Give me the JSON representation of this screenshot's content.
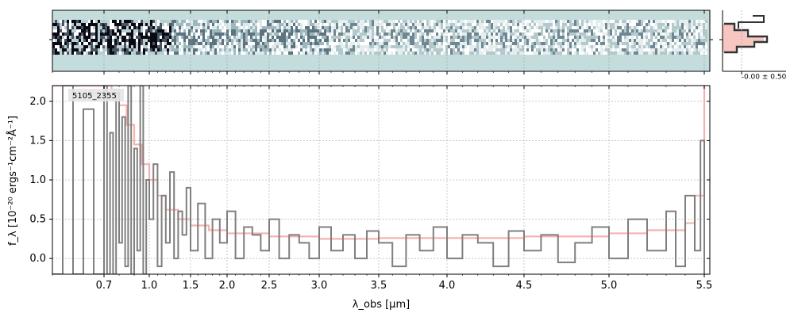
{
  "chart_data": {
    "type": "line",
    "object_label": "5105_2355",
    "xlabel": "λ_obs [μm]",
    "ylabel": "f_λ [10⁻²⁰ ergs⁻¹cm⁻²Å⁻¹]",
    "xlim": [
      0.6,
      5.5
    ],
    "ylim": [
      -0.2,
      2.2
    ],
    "x_scale": "warped (dispersion-based)",
    "x_ticks": [
      0.7,
      1.0,
      1.5,
      2.0,
      2.5,
      3.0,
      3.5,
      4.0,
      4.5,
      5.0,
      5.5
    ],
    "x_tick_labels": [
      "0.7",
      "1.0",
      "1.5",
      "2.0",
      "2.5",
      "3.0",
      "3.5",
      "4.0",
      "4.5",
      "5.0",
      "5.5"
    ],
    "y_ticks": [
      0.0,
      0.5,
      1.0,
      1.5,
      2.0
    ],
    "y_tick_labels": [
      "0.0",
      "0.5",
      "1.0",
      "1.5",
      "2.0"
    ],
    "grid": true,
    "series": [
      {
        "name": "",
        "color": "#f4a6a0",
        "style": "step",
        "x": [
          0.6,
          0.7,
          0.75,
          0.8,
          0.85,
          0.9,
          0.95,
          1.0,
          1.1,
          1.2,
          1.35,
          1.5,
          1.75,
          2.0,
          2.5,
          3.0,
          3.5,
          4.0,
          4.5,
          5.0,
          5.2,
          5.4,
          5.45,
          5.5
        ],
        "values": [
          2.2,
          2.2,
          2.15,
          1.95,
          1.7,
          1.45,
          1.2,
          1.0,
          0.8,
          0.62,
          0.5,
          0.42,
          0.36,
          0.32,
          0.28,
          0.25,
          0.26,
          0.26,
          0.28,
          0.32,
          0.36,
          0.45,
          0.8,
          2.2
        ]
      },
      {
        "name": "",
        "color": "#7f7f7f",
        "style": "step",
        "x": [
          0.6,
          0.62,
          0.64,
          0.66,
          0.68,
          0.7,
          0.72,
          0.74,
          0.76,
          0.78,
          0.8,
          0.82,
          0.84,
          0.86,
          0.88,
          0.9,
          0.92,
          0.94,
          0.96,
          0.98,
          1.0,
          1.05,
          1.1,
          1.15,
          1.2,
          1.25,
          1.3,
          1.35,
          1.4,
          1.45,
          1.5,
          1.6,
          1.7,
          1.8,
          1.9,
          2.0,
          2.1,
          2.2,
          2.3,
          2.4,
          2.5,
          2.6,
          2.7,
          2.8,
          2.9,
          3.0,
          3.1,
          3.2,
          3.3,
          3.4,
          3.5,
          3.6,
          3.7,
          3.8,
          3.9,
          4.0,
          4.1,
          4.2,
          4.3,
          4.4,
          4.5,
          4.6,
          4.7,
          4.8,
          4.9,
          5.0,
          5.1,
          5.2,
          5.3,
          5.35,
          5.4,
          5.45,
          5.48,
          5.5
        ],
        "values": [
          -0.2,
          2.2,
          -0.2,
          1.9,
          -0.2,
          2.2,
          -0.2,
          1.6,
          -0.2,
          2.1,
          0.2,
          1.8,
          -0.1,
          2.2,
          -0.2,
          1.4,
          0.1,
          2.2,
          -0.2,
          1.0,
          0.5,
          1.2,
          -0.1,
          0.8,
          0.2,
          1.1,
          0.0,
          0.6,
          0.3,
          0.9,
          0.1,
          0.7,
          0.0,
          0.5,
          0.2,
          0.6,
          0.0,
          0.4,
          0.3,
          0.1,
          0.5,
          0.0,
          0.3,
          0.2,
          0.0,
          0.4,
          0.1,
          0.3,
          0.0,
          0.35,
          0.2,
          -0.1,
          0.3,
          0.1,
          0.4,
          0.0,
          0.3,
          0.2,
          -0.1,
          0.35,
          0.1,
          0.3,
          -0.05,
          0.2,
          0.4,
          0.0,
          0.5,
          0.1,
          0.6,
          -0.1,
          0.8,
          0.1,
          1.5,
          -0.2
        ]
      }
    ],
    "inset": {
      "label": "-0.00 ± 0.50",
      "profile_color": "#333333",
      "fill_color": "#f4b8b0"
    },
    "spectrum_2d": {
      "background_color": "#c5dcdc",
      "colormap": "bone_r"
    }
  }
}
